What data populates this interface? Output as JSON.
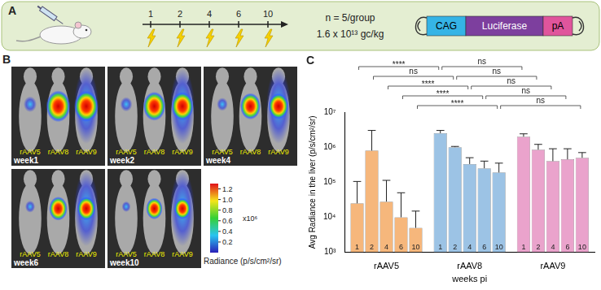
{
  "panel_a": {
    "label": "A",
    "timepoints": [
      1,
      2,
      4,
      6,
      10
    ],
    "group_size": "n = 5/group",
    "dose": "1.6 x 10¹³ gc/kg",
    "construct": [
      "CAG",
      "Luciferase",
      "pA"
    ]
  },
  "panel_b": {
    "label": "B",
    "groups": [
      "rAAV5",
      "rAAV8",
      "rAAV9"
    ],
    "images": [
      "week1",
      "week2",
      "week4",
      "week6",
      "week10"
    ],
    "colorbar": {
      "range": [
        0,
        1.3
      ],
      "ticks": [
        {
          "value": 1.2,
          "label": "1.2"
        },
        {
          "value": 1,
          "label": "1.0"
        },
        0.8,
        0.6,
        0.4,
        0.2
      ],
      "multiplier": "x10⁶",
      "title": "Radiance (p/s/cm²/sr)"
    }
  },
  "chart_data": {
    "type": "bar",
    "panel_label": "C",
    "categories": [
      "rAAV5",
      "rAAV8",
      "rAAV9"
    ],
    "x_label": "weeks pi",
    "y_label": "Avg Radiance in the liver (p/s/cm²/sr)",
    "log": "y",
    "grid": false,
    "ylim": [
      1000,
      10000000
    ],
    "yticks": [
      {
        "value": 1000,
        "label": "10³"
      },
      {
        "value": 10000,
        "label": "10⁴"
      },
      {
        "value": 100000,
        "label": "10⁵"
      },
      {
        "value": 1000000,
        "label": "10⁶"
      },
      {
        "value": 10000000,
        "label": "10⁷"
      }
    ],
    "series": [
      {
        "name": "1",
        "colors": [
          "#f6b77c",
          "#9cc3e5",
          "#eaa3cc"
        ],
        "values": [
          25000,
          2500000,
          2000000
        ],
        "errors": [
          80000,
          500000,
          400000
        ]
      },
      {
        "name": "2",
        "colors": [
          "#f6b77c",
          "#9cc3e5",
          "#eaa3cc"
        ],
        "values": [
          800000,
          1000000,
          850000
        ],
        "errors": [
          2200000,
          50000,
          350000
        ]
      },
      {
        "name": "4",
        "colors": [
          "#f6b77c",
          "#9cc3e5",
          "#eaa3cc"
        ],
        "values": [
          28000,
          330000,
          400000
        ],
        "errors": [
          85000,
          170000,
          500000
        ]
      },
      {
        "name": "6",
        "colors": [
          "#f6b77c",
          "#9cc3e5",
          "#eaa3cc"
        ],
        "values": [
          10000,
          250000,
          450000
        ],
        "errors": [
          40000,
          150000,
          450000
        ]
      },
      {
        "name": "10",
        "colors": [
          "#f6b77c",
          "#9cc3e5",
          "#eaa3cc"
        ],
        "values": [
          5000,
          190000,
          500000
        ],
        "errors": [
          10000,
          160000,
          200000
        ]
      }
    ],
    "comparisons": [
      {
        "series": "1",
        "groups": [
          "rAAV5",
          "rAAV8"
        ],
        "label": "****"
      },
      {
        "series": "1",
        "groups": [
          "rAAV8",
          "rAAV9"
        ],
        "label": "ns"
      },
      {
        "series": "2",
        "groups": [
          "rAAV5",
          "rAAV8"
        ],
        "label": "ns"
      },
      {
        "series": "2",
        "groups": [
          "rAAV8",
          "rAAV9"
        ],
        "label": "ns"
      },
      {
        "series": "4",
        "groups": [
          "rAAV5",
          "rAAV8"
        ],
        "label": "****"
      },
      {
        "series": "4",
        "groups": [
          "rAAV8",
          "rAAV9"
        ],
        "label": "ns"
      },
      {
        "series": "6",
        "groups": [
          "rAAV5",
          "rAAV8"
        ],
        "label": "****"
      },
      {
        "series": "6",
        "groups": [
          "rAAV8",
          "rAAV9"
        ],
        "label": "ns"
      },
      {
        "series": "10",
        "groups": [
          "rAAV5",
          "rAAV8"
        ],
        "label": "****"
      },
      {
        "series": "10",
        "groups": [
          "rAAV8",
          "rAAV9"
        ],
        "label": "ns"
      }
    ]
  }
}
